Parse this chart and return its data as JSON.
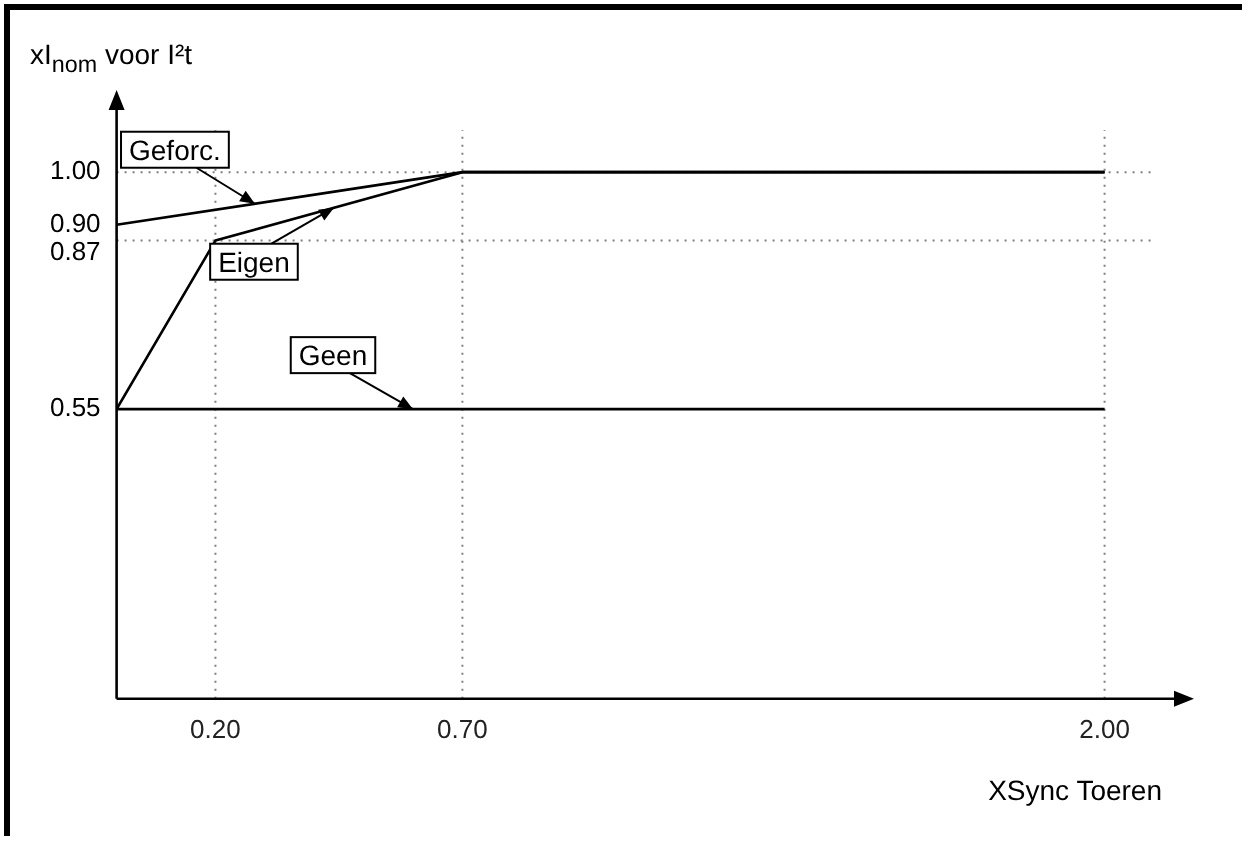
{
  "chart_data": {
    "type": "line",
    "ylabel": "xI$_{nom}$ voor I²t",
    "xlabel": "XSync Toeren",
    "xlim": [
      0,
      2.1
    ],
    "xticks": [
      {
        "value": 0.2,
        "label": "0.20"
      },
      {
        "value": 0.7,
        "label": "0.70"
      },
      {
        "value": 2.0,
        "label": "2.00"
      }
    ],
    "ylim": [
      0,
      1.08
    ],
    "yticks": [
      {
        "value": 0.55,
        "label": "0.55"
      },
      {
        "value": 0.87,
        "label": "0.87"
      },
      {
        "value": 0.9,
        "label": "0.90"
      },
      {
        "value": 1.0,
        "label": "1.00"
      }
    ],
    "grid": false,
    "legend": "top left",
    "marker": "none",
    "line_style": "solid",
    "series": [
      {
        "name": "Geforc.",
        "color": "#000000",
        "x": [
          0,
          0.7,
          2.0
        ],
        "values": [
          0.9,
          1.0,
          1.0
        ]
      },
      {
        "name": "Eigen",
        "color": "#000000",
        "x": [
          0,
          0.2,
          0.7,
          2.0
        ],
        "values": [
          0.55,
          0.87,
          1.0,
          1.0
        ]
      },
      {
        "name": "Geen",
        "color": "#000000",
        "x": [
          0,
          2.0
        ],
        "values": [
          0.55,
          0.55
        ]
      }
    ],
    "ref_lines": [
      {
        "axis": "x",
        "value": 0.2,
        "color": "#808080",
        "line_style": "dotted"
      },
      {
        "axis": "x",
        "value": 0.7,
        "color": "#808080",
        "line_style": "dotted"
      },
      {
        "axis": "x",
        "value": 2.0,
        "color": "#808080",
        "line_style": "dotted"
      },
      {
        "axis": "y",
        "value": 0.87,
        "color": "#808080",
        "line_style": "dotted"
      },
      {
        "axis": "y",
        "value": 1.0,
        "color": "#808080",
        "line_style": "dotted"
      }
    ]
  }
}
